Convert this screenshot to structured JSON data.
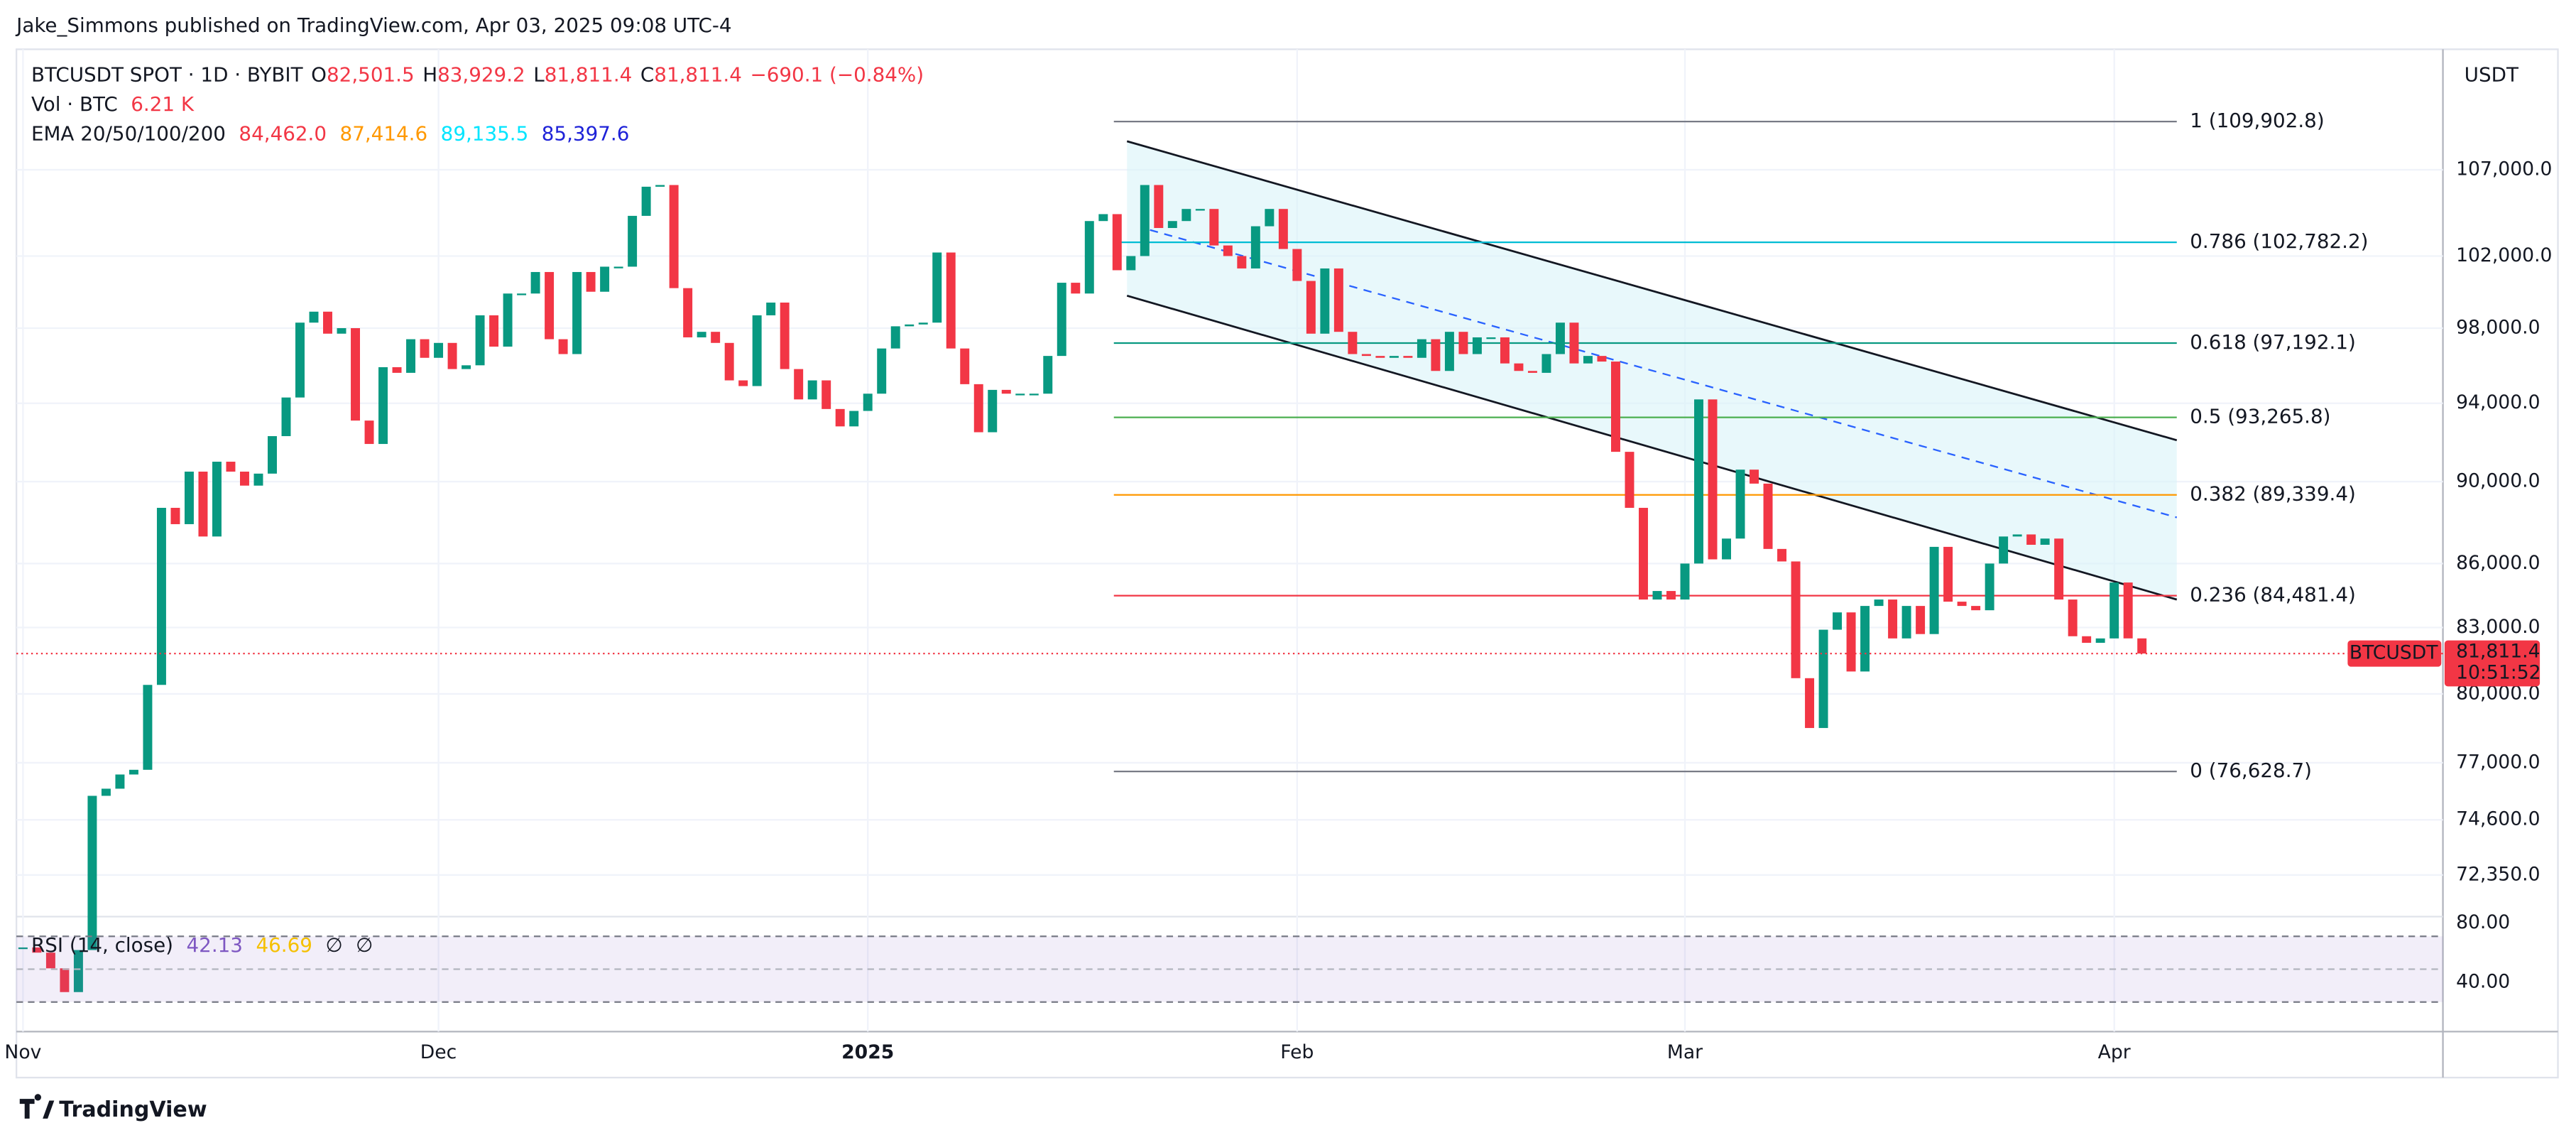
{
  "header": {
    "publisher": "Jake_Simmons published on TradingView.com, Apr 03, 2025 09:08 UTC-4"
  },
  "legend": {
    "symbol": "BTCUSDT SPOT · 1D · BYBIT",
    "ohlc": [
      {
        "key": "O",
        "value": "82,501.5"
      },
      {
        "key": "H",
        "value": "83,929.2"
      },
      {
        "key": "L",
        "value": "81,811.4"
      },
      {
        "key": "C",
        "value": "81,811.4"
      }
    ],
    "change": "−690.1 (−0.84%)",
    "volume_label": "Vol · BTC",
    "volume_value": "6.21 K",
    "ema_label": "EMA 20/50/100/200",
    "ema_values": [
      {
        "value": "84,462.0",
        "color": "#f23645"
      },
      {
        "value": "87,414.6",
        "color": "#ff9800"
      },
      {
        "value": "89,135.5",
        "color": "#00e5ff"
      },
      {
        "value": "85,397.6",
        "color": "#1e22d8"
      }
    ],
    "rsi_label": "RSI (14, close)",
    "rsi_values": [
      {
        "value": "42.13",
        "color": "#7e57c2"
      },
      {
        "value": "46.69",
        "color": "#f5c000"
      },
      {
        "value": "∅",
        "color": "#131722"
      },
      {
        "value": "∅",
        "color": "#131722"
      }
    ]
  },
  "currency": "USDT",
  "chart_data": {
    "type": "candlestick",
    "log_scale": true,
    "up_color": "#089981",
    "down_color": "#f23645",
    "closes": [
      69500,
      69300,
      68700,
      67800,
      69400,
      75600,
      75900,
      76500,
      76700,
      80400,
      88700,
      87900,
      90500,
      87300,
      91000,
      90500,
      89800,
      90400,
      92300,
      94300,
      98300,
      98900,
      97700,
      98000,
      93100,
      91900,
      95900,
      95600,
      97400,
      96400,
      97200,
      95800,
      96000,
      98700,
      97000,
      99900,
      99900,
      101100,
      97400,
      96600,
      101100,
      100000,
      101400,
      101400,
      104300,
      106000,
      106100,
      100200,
      97500,
      97800,
      97200,
      95200,
      94900,
      98700,
      99400,
      95800,
      94200,
      95200,
      93700,
      92800,
      93600,
      94500,
      96900,
      98100,
      98200,
      98300,
      102200,
      96900,
      95000,
      92500,
      94700,
      94500,
      94500,
      94500,
      96500,
      100500,
      99900,
      104000,
      104400,
      101200,
      102000,
      106100,
      103600,
      104000,
      104700,
      104700,
      102600,
      102000,
      101300,
      103700,
      104700,
      102400,
      100600,
      97700,
      101300,
      97800,
      96600,
      96500,
      96400,
      96500,
      96400,
      97400,
      95700,
      97800,
      96600,
      97500,
      97500,
      96100,
      95700,
      95600,
      96600,
      98300,
      96100,
      96500,
      96200,
      91500,
      88700,
      84300,
      84700,
      84300,
      86000,
      94200,
      86200,
      87200,
      90600,
      89900,
      86700,
      86100,
      80700,
      78500,
      82900,
      83700,
      81000,
      84000,
      84300,
      82500,
      84000,
      82700,
      86800,
      84200,
      84000,
      83800,
      86000,
      87300,
      87400,
      86900,
      87200,
      84300,
      82600,
      82300,
      82500,
      85100,
      82501.5,
      81811.4
    ],
    "ylim": [
      70700,
      114400
    ],
    "yticks": [
      {
        "value": 107000,
        "label": "107,000.0"
      },
      {
        "value": 102000,
        "label": "102,000.0"
      },
      {
        "value": 98000,
        "label": "98,000.0"
      },
      {
        "value": 94000,
        "label": "94,000.0"
      },
      {
        "value": 90000,
        "label": "90,000.0"
      },
      {
        "value": 86000,
        "label": "86,000.0"
      },
      {
        "value": 83000,
        "label": "83,000.0"
      },
      {
        "value": 80000,
        "label": "80,000.0"
      },
      {
        "value": 77000,
        "label": "77,000.0"
      },
      {
        "value": 74600,
        "label": "74,600.0"
      },
      {
        "value": 72350,
        "label": "72,350.0"
      }
    ],
    "time_labels": [
      "Nov",
      "Dec",
      "2025",
      "Feb",
      "Mar",
      "Apr"
    ],
    "fib_levels": [
      {
        "value": 109902.8,
        "label": "1 (109,902.8)",
        "color": "#787b86"
      },
      {
        "value": 102782.2,
        "label": "0.786 (102,782.2)",
        "color": "#00bcd4"
      },
      {
        "value": 97192.1,
        "label": "0.618 (97,192.1)",
        "color": "#089981"
      },
      {
        "value": 93265.8,
        "label": "0.5 (93,265.8)",
        "color": "#4caf50"
      },
      {
        "value": 89339.4,
        "label": "0.382 (89,339.4)",
        "color": "#ff9800"
      },
      {
        "value": 84481.4,
        "label": "0.236 (84,481.4)",
        "color": "#f23645"
      },
      {
        "value": 76628.7,
        "label": "0 (76,628.7)",
        "color": "#787b86"
      }
    ],
    "last_price": {
      "value": 81811.4,
      "name": "BTCUSDT",
      "label": "81,811.4",
      "countdown": "10:51:52"
    },
    "rsi_ticks": [
      {
        "value": 80,
        "label": "80.00"
      },
      {
        "value": 40,
        "label": "40.00"
      }
    ]
  },
  "footer": {
    "brand": "TradingView"
  }
}
